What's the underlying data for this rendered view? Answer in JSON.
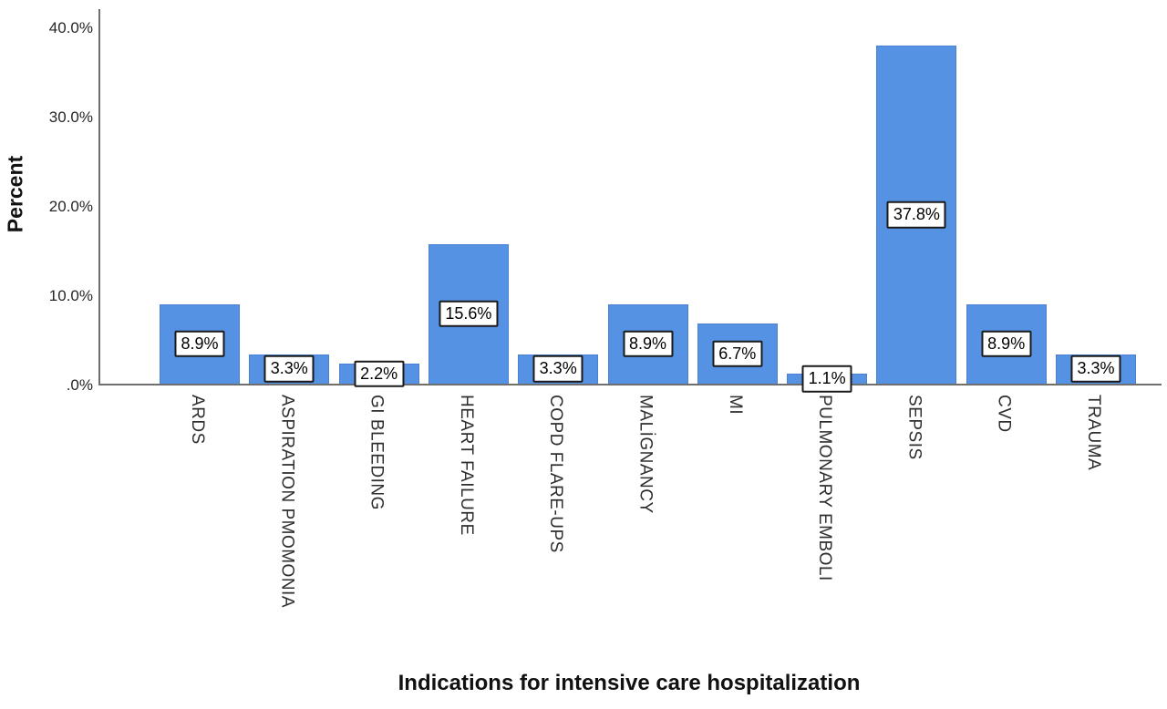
{
  "chart_data": {
    "type": "bar",
    "xlabel": "Indications for intensive care hospitalization",
    "ylabel": "Percent",
    "categories": [
      "ARDS",
      "ASPIRATION PMOMONIA",
      "GI BLEEDING",
      "HEART FAILURE",
      "COPD FLARE-UPS",
      "MALİGNANCY",
      "MI",
      "PULMONARY EMBOLI",
      "SEPSIS",
      "CVD",
      "TRAUMA"
    ],
    "values": [
      8.9,
      3.3,
      2.2,
      15.6,
      3.3,
      8.9,
      6.7,
      1.1,
      37.8,
      8.9,
      3.3
    ],
    "bar_labels": [
      "8.9%",
      "3.3%",
      "2.2%",
      "15.6%",
      "3.3%",
      "8.9%",
      "6.7%",
      "1.1%",
      "37.8%",
      "8.9%",
      "3.3%"
    ],
    "y_ticks": [
      {
        "label": "40.0%",
        "value": 40
      },
      {
        "label": "30.0%",
        "value": 30
      },
      {
        "label": "20.0%",
        "value": 20
      },
      {
        "label": "10.0%",
        "value": 10
      },
      {
        "label": ".0%",
        "value": 0
      }
    ],
    "ylim": [
      0,
      42.1
    ],
    "grid": false,
    "legend_position": "none",
    "bar_color": "#5592E3",
    "bar_border_color": "#4a80cf",
    "axis_color": "#6e6e6e",
    "label_box_border_color": "#1a1a1a"
  }
}
